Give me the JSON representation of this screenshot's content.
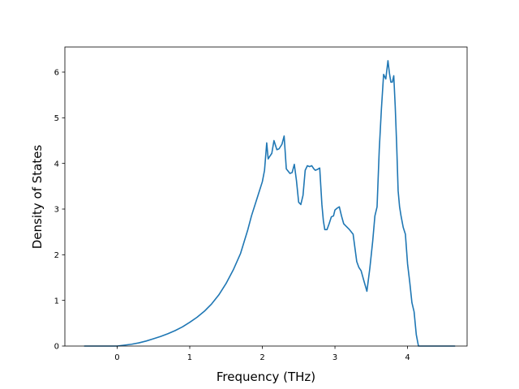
{
  "chart_data": {
    "type": "line",
    "title": "",
    "xlabel": "Frequency (THz)",
    "ylabel": "Density of States",
    "xlim": [
      -0.72,
      4.82
    ],
    "ylim": [
      0,
      6.55
    ],
    "xticks": [
      0,
      1,
      2,
      3,
      4
    ],
    "yticks": [
      0,
      1,
      2,
      3,
      4,
      5,
      6
    ],
    "grid": false,
    "legend": "none",
    "series": [
      {
        "color": "#1f77b4",
        "x": [
          -0.45,
          -0.3,
          -0.15,
          0.0,
          0.1,
          0.2,
          0.3,
          0.4,
          0.5,
          0.6,
          0.7,
          0.8,
          0.9,
          1.0,
          1.1,
          1.2,
          1.3,
          1.4,
          1.5,
          1.6,
          1.7,
          1.8,
          1.85,
          1.9,
          1.95,
          2.0,
          2.03,
          2.06,
          2.08,
          2.1,
          2.13,
          2.16,
          2.2,
          2.23,
          2.27,
          2.3,
          2.33,
          2.36,
          2.38,
          2.41,
          2.44,
          2.47,
          2.5,
          2.53,
          2.56,
          2.59,
          2.62,
          2.65,
          2.68,
          2.71,
          2.73,
          2.76,
          2.79,
          2.82,
          2.84,
          2.86,
          2.89,
          2.92,
          2.95,
          2.98,
          3.0,
          3.03,
          3.06,
          3.09,
          3.12,
          3.15,
          3.2,
          3.25,
          3.3,
          3.33,
          3.36,
          3.4,
          3.44,
          3.48,
          3.52,
          3.55,
          3.58,
          3.61,
          3.64,
          3.67,
          3.7,
          3.73,
          3.75,
          3.77,
          3.79,
          3.81,
          3.83,
          3.85,
          3.87,
          3.89,
          3.91,
          3.94,
          3.97,
          4.0,
          4.03,
          4.06,
          4.09,
          4.12,
          4.15,
          4.18,
          4.2,
          4.22,
          4.25,
          4.3,
          4.5,
          4.65
        ],
        "y": [
          0.0,
          0.0,
          0.0,
          0.0,
          0.02,
          0.04,
          0.07,
          0.11,
          0.16,
          0.21,
          0.27,
          0.34,
          0.42,
          0.52,
          0.63,
          0.76,
          0.92,
          1.12,
          1.37,
          1.67,
          2.03,
          2.55,
          2.85,
          3.1,
          3.35,
          3.6,
          3.85,
          4.45,
          4.1,
          4.15,
          4.22,
          4.5,
          4.3,
          4.32,
          4.42,
          4.6,
          3.88,
          3.82,
          3.78,
          3.8,
          3.98,
          3.62,
          3.15,
          3.1,
          3.3,
          3.85,
          3.95,
          3.93,
          3.95,
          3.88,
          3.85,
          3.87,
          3.9,
          3.1,
          2.75,
          2.55,
          2.55,
          2.68,
          2.83,
          2.85,
          2.98,
          3.02,
          3.05,
          2.85,
          2.68,
          2.63,
          2.55,
          2.45,
          1.85,
          1.72,
          1.65,
          1.42,
          1.2,
          1.7,
          2.3,
          2.85,
          3.05,
          4.3,
          5.2,
          5.95,
          5.85,
          6.25,
          5.98,
          5.78,
          5.78,
          5.92,
          5.25,
          4.4,
          3.4,
          3.05,
          2.85,
          2.6,
          2.45,
          1.8,
          1.4,
          0.95,
          0.75,
          0.25,
          0.0,
          0.0,
          0.0,
          0.0,
          0.0,
          0.0,
          0.0,
          0.0
        ]
      }
    ]
  }
}
